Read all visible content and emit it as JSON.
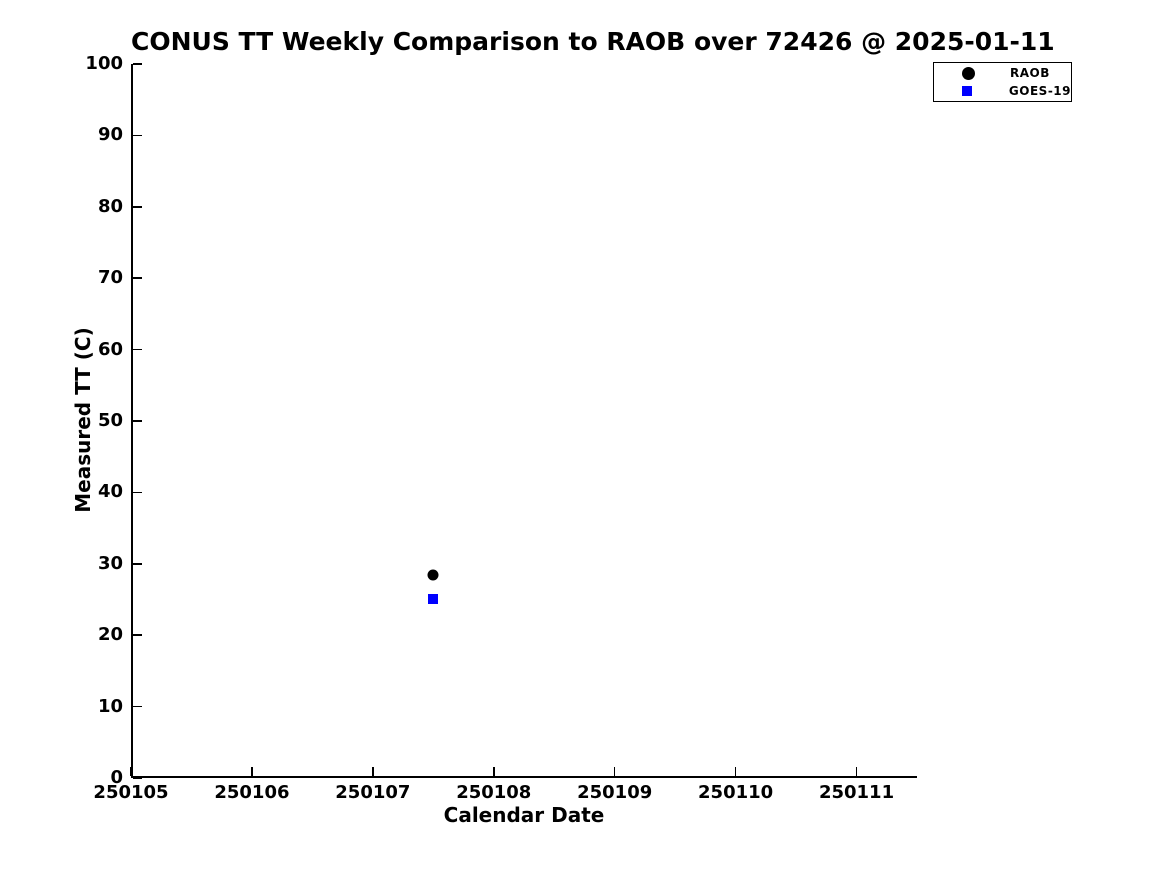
{
  "page": {
    "background": "#ffffff",
    "text_color": "#000000"
  },
  "chart_data": {
    "type": "scatter",
    "title": "CONUS TT Weekly Comparison to RAOB over 72426 @ 2025-01-11",
    "xlabel": "Calendar Date",
    "ylabel": "Measured TT (C)",
    "xlim": [
      250105,
      250111.5
    ],
    "ylim": [
      0,
      100
    ],
    "x_ticks": [
      250105,
      250106,
      250107,
      250108,
      250109,
      250110,
      250111
    ],
    "y_ticks": [
      0,
      10,
      20,
      30,
      40,
      50,
      60,
      70,
      80,
      90,
      100
    ],
    "grid": false,
    "tick_direction": "in",
    "spines": [
      "left",
      "bottom"
    ],
    "legend_position": "top-right-outside",
    "series": [
      {
        "name": "RAOB",
        "marker": "circle",
        "color": "#000000",
        "points": [
          {
            "x": 250107.5,
            "y": 28.5
          }
        ]
      },
      {
        "name": "GOES-19",
        "marker": "square",
        "color": "#0000ff",
        "points": [
          {
            "x": 250107.5,
            "y": 25.1
          }
        ]
      }
    ]
  }
}
